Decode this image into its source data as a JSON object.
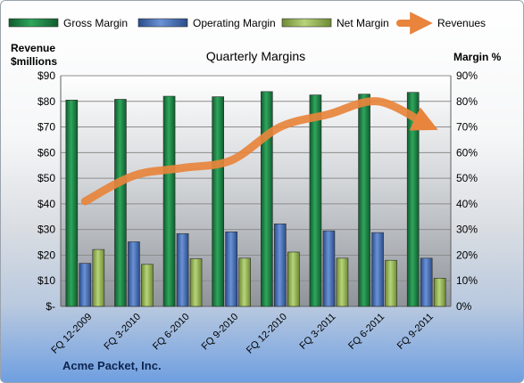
{
  "chart_data": {
    "type": "bar",
    "title": "Quarterly Margins",
    "company": "Acme Packet, Inc.",
    "left_axis_label": [
      "Revenue",
      "$millions"
    ],
    "right_axis_label": "Margin %",
    "left_ticks": [
      "$-",
      "$10",
      "$20",
      "$30",
      "$40",
      "$50",
      "$60",
      "$70",
      "$80",
      "$90"
    ],
    "right_ticks": [
      "0%",
      "10%",
      "20%",
      "30%",
      "40%",
      "50%",
      "60%",
      "70%",
      "80%",
      "90%"
    ],
    "left_range": [
      0,
      90
    ],
    "right_range": [
      0,
      90
    ],
    "legend_position": "top",
    "categories": [
      "FQ 12-2009",
      "FQ 3-2010",
      "FQ 6-2010",
      "FQ 9-2010",
      "FQ 12-2010",
      "FQ 3-2011",
      "FQ 6-2011",
      "FQ 9-2011"
    ],
    "series": [
      {
        "name": "Gross Margin",
        "axis": "right",
        "kind": "bar",
        "color": "#1e8a48",
        "values": [
          80.5,
          80.8,
          82.0,
          81.8,
          83.8,
          82.5,
          82.8,
          83.5
        ]
      },
      {
        "name": "Operating Margin",
        "axis": "right",
        "kind": "bar",
        "color": "#4a72b8",
        "values": [
          16.8,
          25.2,
          28.4,
          29.1,
          32.2,
          29.5,
          28.8,
          18.8
        ]
      },
      {
        "name": "Net Margin",
        "axis": "right",
        "kind": "bar",
        "color": "#9bbb59",
        "values": [
          22.2,
          16.4,
          18.6,
          18.8,
          21.2,
          18.8,
          18.0,
          11.0
        ]
      },
      {
        "name": "Revenues",
        "axis": "left",
        "kind": "line",
        "color": "#e8843c",
        "values": [
          41,
          51,
          54,
          57,
          70,
          75,
          80,
          71
        ]
      }
    ],
    "grid": true
  }
}
